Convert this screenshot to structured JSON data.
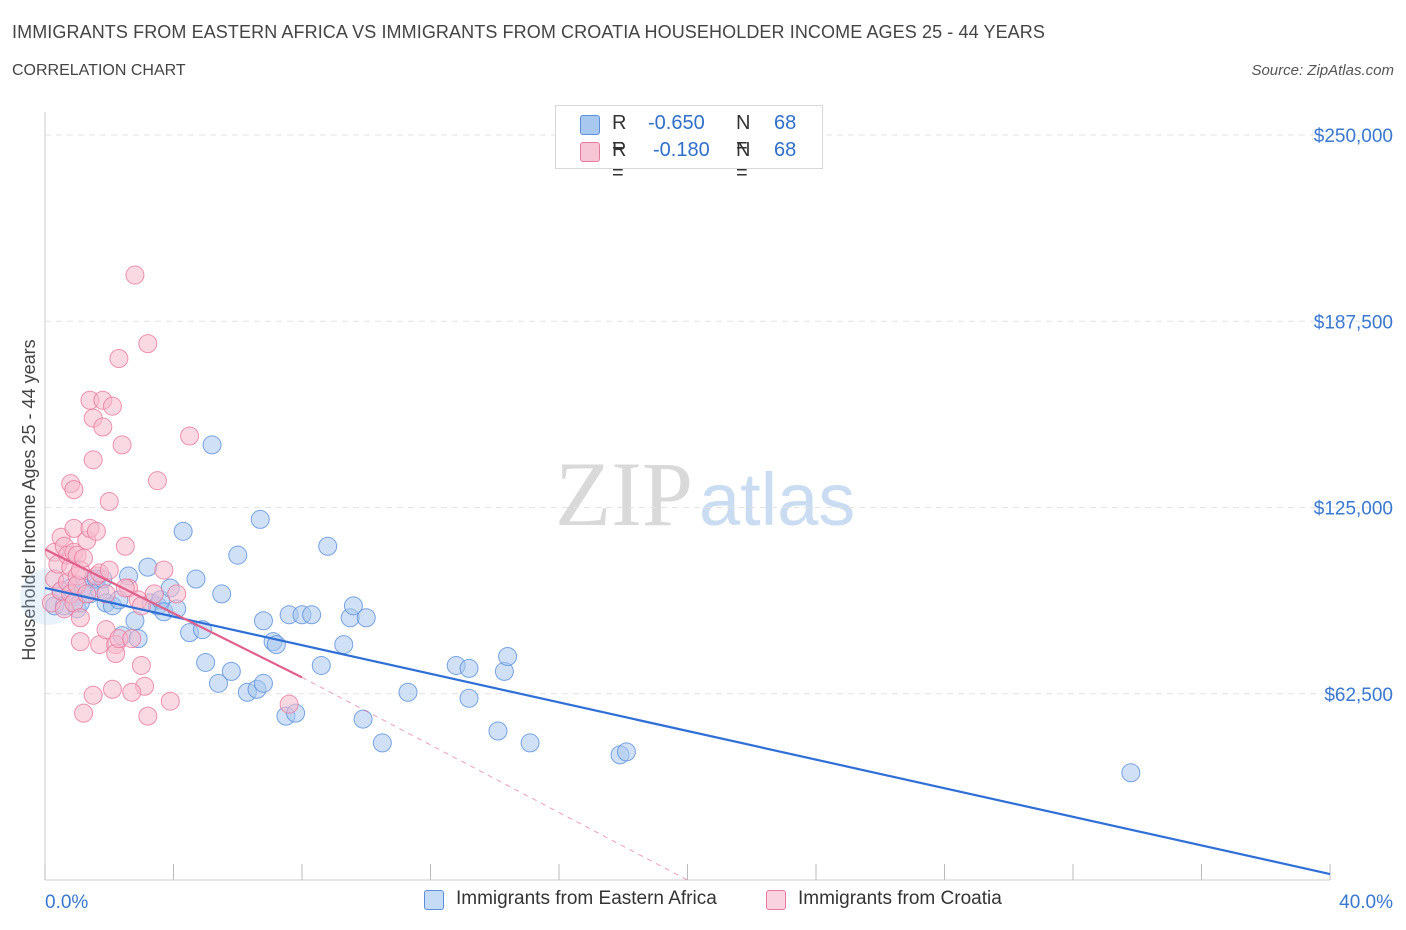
{
  "header": {
    "title": "IMMIGRANTS FROM EASTERN AFRICA VS IMMIGRANTS FROM CROATIA HOUSEHOLDER INCOME AGES 25 - 44 YEARS",
    "subtitle": "CORRELATION CHART",
    "source": "Source: ZipAtlas.com"
  },
  "legend": {
    "rows": [
      {
        "r_label": "R =",
        "r_value": "-0.650",
        "n_label": "N =",
        "n_value": "68"
      },
      {
        "r_label": "R =",
        "r_value": "-0.180",
        "n_label": "N =",
        "n_value": "68"
      }
    ]
  },
  "bottom_legend": {
    "series1": "Immigrants from Eastern Africa",
    "series2": "Immigrants from Croatia"
  },
  "colors": {
    "blue_fill": "#a9c8f0",
    "blue_stroke": "#5b8fd8",
    "blue_line": "#2f6fd6",
    "pink_fill": "#f7b9cc",
    "pink_stroke": "#e8799c",
    "pink_line": "#e0608c",
    "axis_label_blue": "#3a78d0",
    "grid": "#e3e3e3"
  },
  "chart_data": {
    "type": "scatter",
    "watermark": "ZIPatlas",
    "ylabel": "Householder Income Ages 25 - 44 years",
    "xlim": [
      0,
      40
    ],
    "ylim": [
      0,
      250000
    ],
    "x_tick_labels": [
      "0.0%",
      "40.0%"
    ],
    "y_ticks": [
      62500,
      125000,
      187500,
      250000
    ],
    "y_tick_labels": [
      "$62,500",
      "$125,000",
      "$187,500",
      "$250,000"
    ],
    "grid": true,
    "series": [
      {
        "name": "Immigrants from Eastern Africa",
        "color": "blue",
        "points": [
          [
            0.3,
            92000
          ],
          [
            0.5,
            97000
          ],
          [
            0.6,
            92000
          ],
          [
            0.8,
            98000
          ],
          [
            0.9,
            95000
          ],
          [
            1.0,
            91000
          ],
          [
            1.1,
            93000
          ],
          [
            1.2,
            98000
          ],
          [
            1.4,
            96000
          ],
          [
            1.5,
            101000
          ],
          [
            1.6,
            101000
          ],
          [
            1.7,
            97000
          ],
          [
            1.8,
            101000
          ],
          [
            1.9,
            93000
          ],
          [
            2.1,
            92000
          ],
          [
            2.3,
            94000
          ],
          [
            2.4,
            82000
          ],
          [
            2.6,
            102000
          ],
          [
            2.8,
            87000
          ],
          [
            2.9,
            81000
          ],
          [
            3.2,
            105000
          ],
          [
            3.3,
            93000
          ],
          [
            3.5,
            92000
          ],
          [
            3.6,
            94000
          ],
          [
            3.7,
            90000
          ],
          [
            3.9,
            98000
          ],
          [
            4.1,
            91000
          ],
          [
            4.3,
            117000
          ],
          [
            4.5,
            83000
          ],
          [
            4.7,
            101000
          ],
          [
            4.9,
            84000
          ],
          [
            5.0,
            73000
          ],
          [
            5.2,
            146000
          ],
          [
            5.4,
            66000
          ],
          [
            5.5,
            96000
          ],
          [
            5.8,
            70000
          ],
          [
            6.0,
            109000
          ],
          [
            6.3,
            63000
          ],
          [
            6.6,
            64000
          ],
          [
            6.8,
            66000
          ],
          [
            6.7,
            121000
          ],
          [
            6.8,
            87000
          ],
          [
            7.1,
            80000
          ],
          [
            7.2,
            79000
          ],
          [
            7.5,
            55000
          ],
          [
            7.6,
            89000
          ],
          [
            7.8,
            56000
          ],
          [
            8.0,
            89000
          ],
          [
            8.3,
            89000
          ],
          [
            8.6,
            72000
          ],
          [
            8.8,
            112000
          ],
          [
            9.3,
            79000
          ],
          [
            9.5,
            88000
          ],
          [
            9.6,
            92000
          ],
          [
            10.0,
            88000
          ],
          [
            9.9,
            54000
          ],
          [
            10.5,
            46000
          ],
          [
            11.3,
            63000
          ],
          [
            12.8,
            72000
          ],
          [
            13.2,
            71000
          ],
          [
            13.2,
            61000
          ],
          [
            14.1,
            50000
          ],
          [
            14.3,
            70000
          ],
          [
            14.4,
            75000
          ],
          [
            15.1,
            46000
          ],
          [
            17.9,
            42000
          ],
          [
            18.1,
            43000
          ],
          [
            33.8,
            36000
          ]
        ]
      },
      {
        "name": "Immigrants from Croatia",
        "color": "pink",
        "points": [
          [
            0.2,
            93000
          ],
          [
            0.3,
            101000
          ],
          [
            0.3,
            110000
          ],
          [
            0.4,
            106000
          ],
          [
            0.5,
            115000
          ],
          [
            0.5,
            97000
          ],
          [
            0.6,
            112000
          ],
          [
            0.6,
            91000
          ],
          [
            0.7,
            109000
          ],
          [
            0.7,
            100000
          ],
          [
            0.8,
            105000
          ],
          [
            0.8,
            96000
          ],
          [
            0.8,
            133000
          ],
          [
            0.9,
            131000
          ],
          [
            0.9,
            118000
          ],
          [
            0.9,
            110000
          ],
          [
            0.9,
            93000
          ],
          [
            1.0,
            109000
          ],
          [
            1.0,
            102000
          ],
          [
            1.0,
            99000
          ],
          [
            1.1,
            104000
          ],
          [
            1.1,
            88000
          ],
          [
            1.1,
            80000
          ],
          [
            1.2,
            108000
          ],
          [
            1.3,
            96000
          ],
          [
            1.3,
            114000
          ],
          [
            1.4,
            118000
          ],
          [
            1.4,
            161000
          ],
          [
            1.5,
            141000
          ],
          [
            1.5,
            155000
          ],
          [
            1.6,
            117000
          ],
          [
            1.6,
            102000
          ],
          [
            1.7,
            103000
          ],
          [
            1.7,
            79000
          ],
          [
            1.8,
            152000
          ],
          [
            1.8,
            161000
          ],
          [
            1.9,
            96000
          ],
          [
            1.9,
            84000
          ],
          [
            2.0,
            127000
          ],
          [
            2.0,
            104000
          ],
          [
            2.1,
            159000
          ],
          [
            2.1,
            64000
          ],
          [
            2.2,
            79000
          ],
          [
            2.2,
            76000
          ],
          [
            2.3,
            81000
          ],
          [
            2.4,
            146000
          ],
          [
            2.5,
            112000
          ],
          [
            2.6,
            98000
          ],
          [
            2.7,
            81000
          ],
          [
            2.8,
            203000
          ],
          [
            2.9,
            94000
          ],
          [
            3.0,
            72000
          ],
          [
            3.1,
            65000
          ],
          [
            3.2,
            55000
          ],
          [
            3.2,
            180000
          ],
          [
            3.4,
            96000
          ],
          [
            3.5,
            134000
          ],
          [
            3.7,
            104000
          ],
          [
            3.9,
            60000
          ],
          [
            4.1,
            96000
          ],
          [
            2.3,
            175000
          ],
          [
            1.5,
            62000
          ],
          [
            1.2,
            56000
          ],
          [
            2.5,
            98000
          ],
          [
            3.0,
            92000
          ],
          [
            2.7,
            63000
          ],
          [
            7.6,
            59000
          ],
          [
            4.5,
            149000
          ]
        ]
      }
    ],
    "trend_lines": [
      {
        "series": "Immigrants from Eastern Africa",
        "from": [
          0,
          98000
        ],
        "to": [
          40,
          2000
        ],
        "style": "solid"
      },
      {
        "series": "Immigrants from Croatia",
        "from": [
          0,
          111000
        ],
        "to": [
          8,
          68000
        ],
        "style": "solid"
      },
      {
        "series": "Immigrants from Croatia",
        "from": [
          8,
          68000
        ],
        "to": [
          20,
          0
        ],
        "style": "dashed"
      }
    ]
  }
}
